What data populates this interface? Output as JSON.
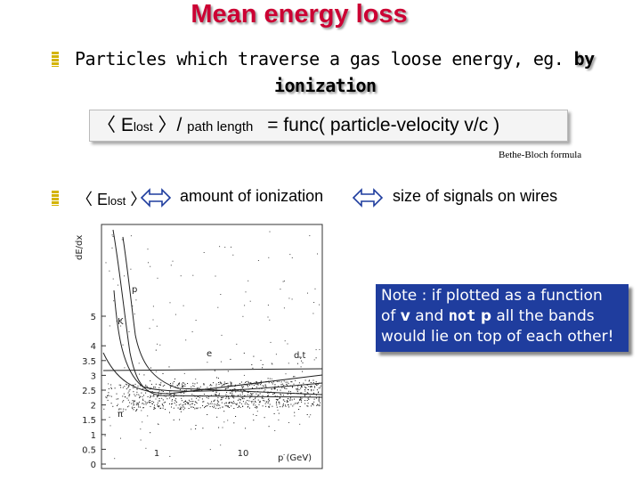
{
  "title": "Mean energy loss",
  "bullet1": {
    "text_part1": "Particles which traverse a gas loose energy, eg.",
    "text_bold1": "by",
    "text_bold2": "ionization"
  },
  "formula": {
    "open": "〈 E",
    "sub": "lost",
    "close": "〉/",
    "path_length": "path length",
    "rest": "= func( particle-velocity v/c )"
  },
  "bethe_bloch_label": "Bethe-Bloch formula",
  "bullet2": {
    "elost_open": "〈 E",
    "elost_sub": "lost",
    "elost_close": "〉",
    "amount": "amount of ionization",
    "signals": "size of signals on wires"
  },
  "plot": {
    "y_axis_label": "dE/dx",
    "y_ticks": [
      "5",
      "4",
      "3.5",
      "3",
      "2.5",
      "2",
      "1.5",
      "1",
      "0.5",
      "0"
    ],
    "x_ticks": [
      "1",
      "10"
    ],
    "x_axis_label": "p (GeV)",
    "band_labels": [
      "p",
      "K",
      "π",
      "e",
      "d,t"
    ]
  },
  "note": {
    "line1": "Note : if plotted as a function",
    "line2_a": "of",
    "line2_v": "v",
    "line2_b": "and",
    "line2_not": "not",
    "line2_p": "p",
    "line2_c": "all the bands",
    "line3": "would lie on top of each other!"
  },
  "colors": {
    "title": "#cc0033",
    "bullet": "#d4b400",
    "note_bg": "#1f3d9e"
  }
}
